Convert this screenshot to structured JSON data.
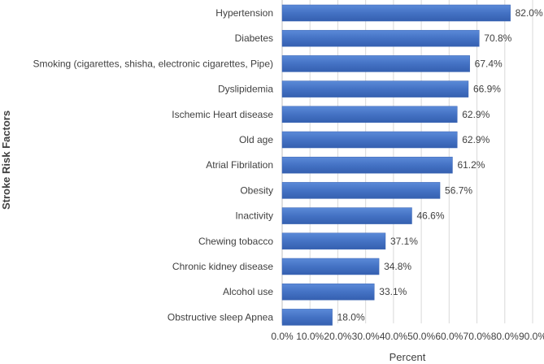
{
  "chart_data": {
    "type": "bar",
    "orientation": "horizontal",
    "categories": [
      "Hypertension",
      "Diabetes",
      "Smoking (cigarettes, shisha, electronic cigarettes, Pipe)",
      "Dyslipidemia",
      "Ischemic Heart disease",
      "Old age",
      "Atrial Fibrilation",
      "Obesity",
      "Inactivity",
      "Chewing tobacco",
      "Chronic kidney disease",
      "Alcohol use",
      "Obstructive sleep Apnea"
    ],
    "values": [
      82.0,
      70.8,
      67.4,
      66.9,
      62.9,
      62.9,
      61.2,
      56.7,
      46.6,
      37.1,
      34.8,
      33.1,
      18.0
    ],
    "value_labels": [
      "82.0%",
      "70.8%",
      "67.4%",
      "66.9%",
      "62.9%",
      "62.9%",
      "61.2%",
      "56.7%",
      "46.6%",
      "37.1%",
      "34.8%",
      "33.1%",
      "18.0%"
    ],
    "xlabel": "Percent",
    "ylabel": "Stroke Risk Factors",
    "xlim": [
      0,
      90
    ],
    "xticks": [
      0,
      10,
      20,
      30,
      40,
      50,
      60,
      70,
      80,
      90
    ],
    "xtick_labels": [
      "0.0%",
      "10.0%",
      "20.0%",
      "30.0%",
      "40.0%",
      "50.0%",
      "60.0%",
      "70.0%",
      "80.0%",
      "90.0%"
    ],
    "grid": true,
    "bar_color": "#4472c4"
  }
}
